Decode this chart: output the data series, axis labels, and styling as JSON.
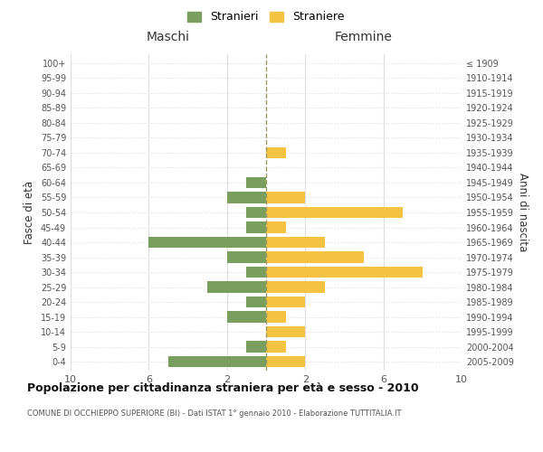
{
  "age_groups": [
    "100+",
    "95-99",
    "90-94",
    "85-89",
    "80-84",
    "75-79",
    "70-74",
    "65-69",
    "60-64",
    "55-59",
    "50-54",
    "45-49",
    "40-44",
    "35-39",
    "30-34",
    "25-29",
    "20-24",
    "15-19",
    "10-14",
    "5-9",
    "0-4"
  ],
  "birth_years": [
    "≤ 1909",
    "1910-1914",
    "1915-1919",
    "1920-1924",
    "1925-1929",
    "1930-1934",
    "1935-1939",
    "1940-1944",
    "1945-1949",
    "1950-1954",
    "1955-1959",
    "1960-1964",
    "1965-1969",
    "1970-1974",
    "1975-1979",
    "1980-1984",
    "1985-1989",
    "1990-1994",
    "1995-1999",
    "2000-2004",
    "2005-2009"
  ],
  "maschi": [
    0,
    0,
    0,
    0,
    0,
    0,
    0,
    0,
    1,
    2,
    1,
    1,
    6,
    2,
    1,
    3,
    1,
    2,
    0,
    1,
    5
  ],
  "femmine": [
    0,
    0,
    0,
    0,
    0,
    0,
    1,
    0,
    0,
    2,
    7,
    1,
    3,
    5,
    8,
    3,
    2,
    1,
    2,
    1,
    2
  ],
  "color_maschi": "#7a9e5e",
  "color_femmine": "#f5c342",
  "title": "Popolazione per cittadinanza straniera per età e sesso - 2010",
  "subtitle": "COMUNE DI OCCHIEPPO SUPERIORE (BI) - Dati ISTAT 1° gennaio 2010 - Elaborazione TUTTITALIA.IT",
  "ylabel_left": "Fasce di età",
  "ylabel_right": "Anni di nascita",
  "xlabel_left": "Maschi",
  "xlabel_right": "Femmine",
  "legend_maschi": "Stranieri",
  "legend_femmine": "Straniere",
  "xlim": 10,
  "background_color": "#ffffff",
  "grid_color": "#dddddd"
}
